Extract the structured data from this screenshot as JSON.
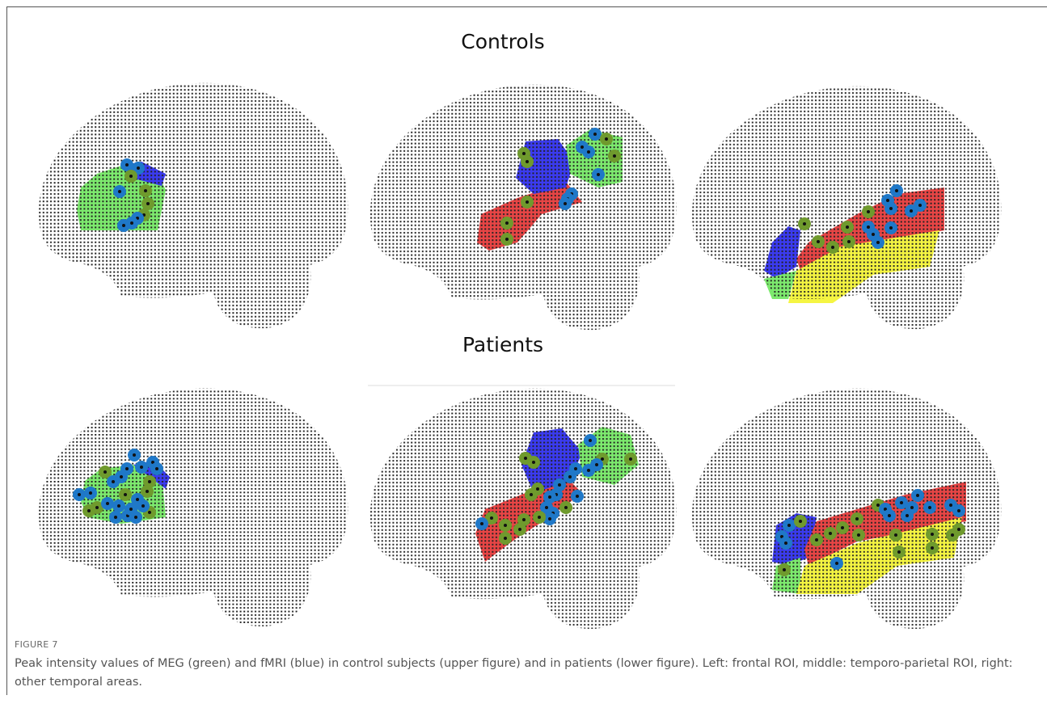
{
  "figure": {
    "panel_titles": [
      "Controls",
      "Patients"
    ],
    "label": "FIGURE 7",
    "caption": "Peak intensity values of MEG (green) and fMRI (blue) in control subjects (upper figure) and in patients (lower figure). Left: frontal ROI, middle: temporo-parietal ROI, right: other temporal areas."
  }
}
